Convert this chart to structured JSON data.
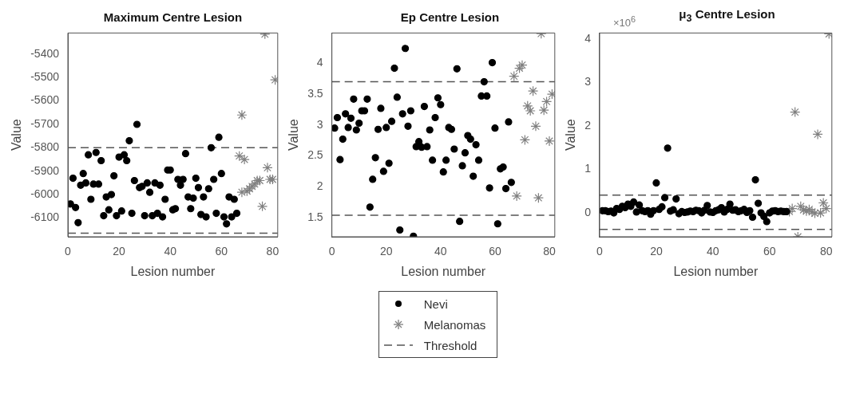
{
  "chart_data": [
    {
      "type": "scatter",
      "title": "Maximum Centre Lesion",
      "xlabel": "Lesion number",
      "ylabel": "Value",
      "xlim": [
        0,
        82
      ],
      "xticks": [
        0,
        20,
        40,
        60,
        80
      ],
      "ylim": [
        -6180,
        -5310
      ],
      "yticks": [
        -6100,
        -6000,
        -5900,
        -5800,
        -5700,
        -5600,
        -5500,
        -5400
      ],
      "series": [
        {
          "marker": "circle",
          "color": "#000000",
          "x": [
            1,
            2,
            3,
            4,
            5,
            6,
            7,
            8,
            9,
            10,
            11,
            12,
            13,
            14,
            15,
            16,
            17,
            18,
            19,
            20,
            21,
            22,
            23,
            24,
            25,
            26,
            27,
            28,
            29,
            30,
            31,
            32,
            33,
            34,
            35,
            36,
            37,
            38,
            39,
            40,
            41,
            42,
            43,
            44,
            45,
            46,
            47,
            48,
            49,
            50,
            51,
            52,
            53,
            54,
            55,
            56,
            57,
            58,
            59,
            60,
            61,
            62,
            63,
            64,
            65,
            66
          ],
          "values": [
            -6040,
            -5930,
            -6055,
            -6120,
            -5960,
            -5910,
            -5950,
            -5830,
            -6020,
            -5955,
            -5820,
            -5955,
            -5855,
            -6090,
            -6010,
            -6065,
            -6000,
            -5920,
            -6090,
            -5840,
            -6070,
            -5830,
            -5855,
            -5770,
            -6080,
            -5940,
            -5700,
            -5970,
            -5965,
            -6090,
            -5950,
            -5990,
            -6090,
            -5950,
            -6080,
            -5960,
            -6095,
            -6020,
            -5895,
            -5895,
            -6065,
            -6060,
            -5935,
            -5960,
            -5935,
            -5825,
            -6010,
            -6060,
            -6015,
            -5930,
            -5970,
            -6085,
            -6010,
            -6095,
            -5975,
            -5800,
            -5935,
            -6080,
            -5755,
            -5910,
            -6095,
            -6125,
            -6010,
            -6095,
            -6020,
            -6080
          ]
        },
        {
          "marker": "cross",
          "color": "#808080",
          "x": [
            67,
            68,
            68,
            69,
            70,
            71,
            72,
            73,
            74,
            75,
            76,
            77,
            78,
            79,
            80,
            81
          ],
          "values": [
            -5835,
            -5660,
            -5990,
            -5850,
            -5985,
            -5975,
            -5965,
            -5955,
            -5940,
            -5940,
            -6050,
            -5315,
            -5885,
            -5935,
            -5935,
            -5510
          ]
        }
      ],
      "ref_lines": [
        {
          "axis": "y",
          "value": -5800,
          "color": "#555555",
          "line_style": "dashed"
        },
        {
          "axis": "y",
          "value": -6165,
          "color": "#555555",
          "line_style": "dashed"
        }
      ]
    },
    {
      "type": "scatter",
      "title": "Ep Centre Lesion",
      "xlabel": "Lesion number",
      "ylabel": "Value",
      "legend": "bottom",
      "xlim": [
        0,
        82
      ],
      "xticks": [
        0,
        20,
        40,
        60,
        80
      ],
      "ylim": [
        1.19,
        4.49
      ],
      "yticks": [
        1.5,
        2,
        2.5,
        3,
        3.5,
        4
      ],
      "series": [
        {
          "name": "Nevi",
          "marker": "circle",
          "color": "#000000",
          "x": [
            1,
            2,
            3,
            4,
            5,
            6,
            7,
            8,
            9,
            10,
            11,
            12,
            13,
            14,
            15,
            16,
            17,
            18,
            19,
            20,
            21,
            22,
            23,
            24,
            25,
            26,
            27,
            28,
            29,
            30,
            31,
            32,
            33,
            34,
            35,
            36,
            37,
            38,
            39,
            40,
            41,
            42,
            43,
            44,
            45,
            46,
            47,
            48,
            49,
            50,
            51,
            52,
            53,
            54,
            55,
            56,
            57,
            58,
            59,
            60,
            61,
            62,
            63,
            64,
            65,
            66
          ],
          "values": [
            2.95,
            3.12,
            2.44,
            2.77,
            3.18,
            2.96,
            3.11,
            3.42,
            2.92,
            3.03,
            3.23,
            3.23,
            3.42,
            1.67,
            2.12,
            2.47,
            2.93,
            3.27,
            2.25,
            2.96,
            2.38,
            3.06,
            3.92,
            3.45,
            1.3,
            3.18,
            4.24,
            2.98,
            3.23,
            1.2,
            2.65,
            2.73,
            2.64,
            3.3,
            2.65,
            2.92,
            2.43,
            3.12,
            3.44,
            3.33,
            2.24,
            2.43,
            2.96,
            2.93,
            2.61,
            3.91,
            1.44,
            2.34,
            2.55,
            2.83,
            2.77,
            2.17,
            2.68,
            2.43,
            3.47,
            3.7,
            3.47,
            1.98,
            4.01,
            2.95,
            1.4,
            2.29,
            2.32,
            1.97,
            3.05,
            2.07
          ]
        },
        {
          "name": "Melanomas",
          "marker": "cross",
          "color": "#808080",
          "x": [
            67,
            68,
            69,
            70,
            71,
            72,
            73,
            74,
            75,
            76,
            77,
            78,
            79,
            80,
            81
          ],
          "values": [
            3.79,
            1.85,
            3.92,
            3.97,
            2.76,
            3.31,
            3.23,
            3.55,
            2.98,
            1.82,
            4.48,
            3.24,
            3.38,
            2.74,
            3.5
          ]
        }
      ],
      "ref_lines": [
        {
          "axis": "y",
          "value": 3.7,
          "label": "Threshold",
          "color": "#555555",
          "line_style": "dashed"
        },
        {
          "axis": "y",
          "value": 1.54,
          "color": "#555555",
          "line_style": "dashed"
        }
      ]
    },
    {
      "type": "scatter",
      "title": "μ$_{3}$ Centre Lesion",
      "xlabel": "Lesion number",
      "ylabel": "Value",
      "annotations": [
        "×10$^{6}$"
      ],
      "xlim": [
        0,
        82
      ],
      "xticks": [
        0,
        20,
        40,
        60,
        80
      ],
      "ylim": [
        -0.55,
        4.14
      ],
      "yticks": [
        0,
        1,
        2,
        3,
        4
      ],
      "series": [
        {
          "marker": "circle",
          "color": "#000000",
          "x": [
            1,
            2,
            3,
            4,
            5,
            6,
            7,
            8,
            9,
            10,
            11,
            12,
            13,
            14,
            15,
            16,
            17,
            18,
            19,
            20,
            21,
            22,
            23,
            24,
            25,
            26,
            27,
            28,
            29,
            30,
            31,
            32,
            33,
            34,
            35,
            36,
            37,
            38,
            39,
            40,
            41,
            42,
            43,
            44,
            45,
            46,
            47,
            48,
            49,
            50,
            51,
            52,
            53,
            54,
            55,
            56,
            57,
            58,
            59,
            60,
            61,
            62,
            63,
            64,
            65,
            66
          ],
          "values": [
            0.05,
            0.05,
            0.03,
            0.04,
            0.0,
            0.1,
            0.08,
            0.15,
            0.12,
            0.2,
            0.15,
            0.25,
            0.02,
            0.18,
            0.05,
            0.03,
            0.05,
            -0.03,
            0.05,
            0.69,
            0.08,
            0.14,
            0.35,
            1.49,
            0.04,
            0.07,
            0.32,
            -0.02,
            0.03,
            0.01,
            0.02,
            0.04,
            0.03,
            0.06,
            0.05,
            0.0,
            0.06,
            0.17,
            0.02,
            0.01,
            0.05,
            0.07,
            0.12,
            0.02,
            0.08,
            0.2,
            0.06,
            0.07,
            0.03,
            0.05,
            0.08,
            0.01,
            0.05,
            -0.1,
            0.76,
            0.22,
            0.0,
            -0.08,
            -0.2,
            0.0,
            0.04,
            0.05,
            0.03,
            0.04,
            0.03,
            0.03
          ]
        },
        {
          "marker": "cross",
          "color": "#808080",
          "x": [
            67,
            68,
            69,
            70,
            71,
            72,
            73,
            74,
            75,
            76,
            77,
            78,
            79,
            80,
            81
          ],
          "values": [
            0.03,
            0.1,
            2.32,
            -0.55,
            0.15,
            0.07,
            0.04,
            0.08,
            0.02,
            -0.01,
            1.81,
            0.0,
            0.23,
            0.1,
            4.12
          ]
        }
      ],
      "ref_lines": [
        {
          "axis": "y",
          "value": 0.41,
          "color": "#555555",
          "line_style": "dashed"
        },
        {
          "axis": "y",
          "value": -0.38,
          "color": "#555555",
          "line_style": "dashed"
        }
      ]
    }
  ]
}
